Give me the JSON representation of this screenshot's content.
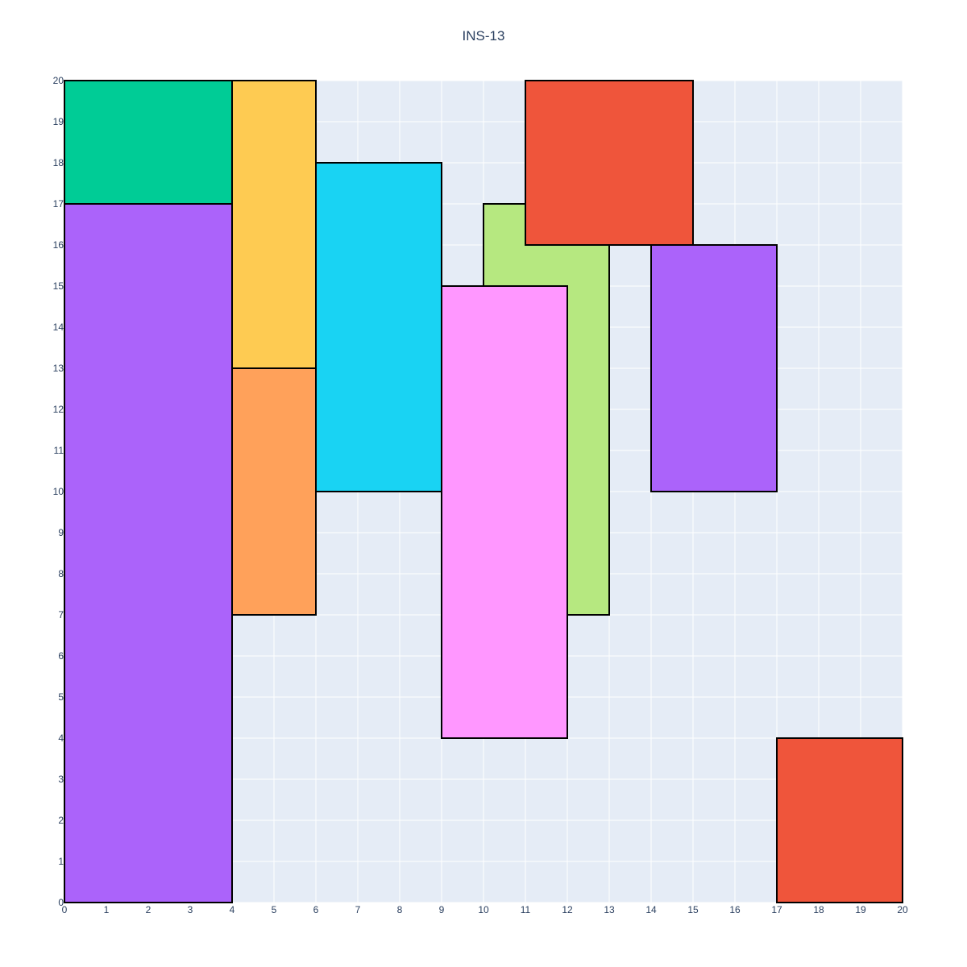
{
  "chart_data": {
    "type": "rectangles",
    "title": "INS-13",
    "xlabel": "",
    "ylabel": "",
    "xlim": [
      0,
      20
    ],
    "ylim": [
      0,
      20
    ],
    "grid": true,
    "x_ticks": [
      0,
      1,
      2,
      3,
      4,
      5,
      6,
      7,
      8,
      9,
      10,
      11,
      12,
      13,
      14,
      15,
      16,
      17,
      18,
      19,
      20
    ],
    "y_ticks": [
      0,
      1,
      2,
      3,
      4,
      5,
      6,
      7,
      8,
      9,
      10,
      11,
      12,
      13,
      14,
      15,
      16,
      17,
      18,
      19,
      20
    ],
    "colors": {
      "plot_background": "#e5ecf6",
      "grid": "#ffffff",
      "outline": "#000000"
    },
    "rectangles": [
      {
        "x0": 0,
        "x1": 4,
        "y0": 17,
        "y1": 20,
        "color": "#00cc96"
      },
      {
        "x0": 0,
        "x1": 4,
        "y0": 0,
        "y1": 17,
        "color": "#ab63fa"
      },
      {
        "x0": 4,
        "x1": 6,
        "y0": 13,
        "y1": 20,
        "color": "#fecb52"
      },
      {
        "x0": 4,
        "x1": 6,
        "y0": 7,
        "y1": 13,
        "color": "#ffa15a"
      },
      {
        "x0": 6,
        "x1": 9,
        "y0": 10,
        "y1": 18,
        "color": "#19d3f3"
      },
      {
        "x0": 10,
        "x1": 13,
        "y0": 7,
        "y1": 17,
        "color": "#b6e880"
      },
      {
        "x0": 9,
        "x1": 12,
        "y0": 4,
        "y1": 15,
        "color": "#ff97ff"
      },
      {
        "x0": 11,
        "x1": 15,
        "y0": 16,
        "y1": 20,
        "color": "#ef553b"
      },
      {
        "x0": 14,
        "x1": 17,
        "y0": 10,
        "y1": 16,
        "color": "#ab63fa"
      },
      {
        "x0": 17,
        "x1": 20,
        "y0": 0,
        "y1": 4,
        "color": "#ef553b"
      }
    ]
  }
}
